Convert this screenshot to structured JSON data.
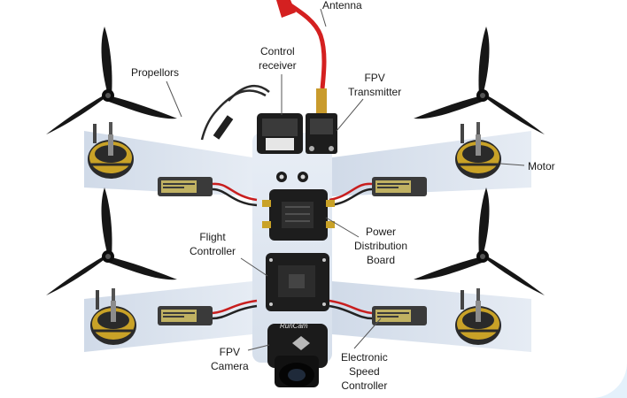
{
  "diagram": {
    "labels": {
      "antenna": "Antenna",
      "propellors": "Propellors",
      "control_receiver": [
        "Control",
        "receiver"
      ],
      "fpv_transmitter": [
        "FPV",
        "Transmitter"
      ],
      "motor": "Motor",
      "flight_controller": [
        "Flight",
        "Controller"
      ],
      "power_distribution_board": [
        "Power",
        "Distribution",
        "Board"
      ],
      "fpv_camera": [
        "FPV",
        "Camera"
      ],
      "esc": [
        "Electronic",
        "Speed",
        "Controller"
      ],
      "camera_brand": "RunCam"
    },
    "colors": {
      "frame_panel": "#dfe6f0",
      "propeller": "#161616",
      "motor_gold": "#c9a227",
      "motor_dark": "#2a2a2a",
      "esc_wrap": "#3a3a3a",
      "esc_label": "#d8c76a",
      "wire_red": "#c81e1e",
      "wire_dark": "#222222",
      "pcb": "#1d1d1d",
      "antenna_cable": "#d42020",
      "sma_gold": "#c99b2c",
      "background": "#e4f1fb"
    }
  }
}
